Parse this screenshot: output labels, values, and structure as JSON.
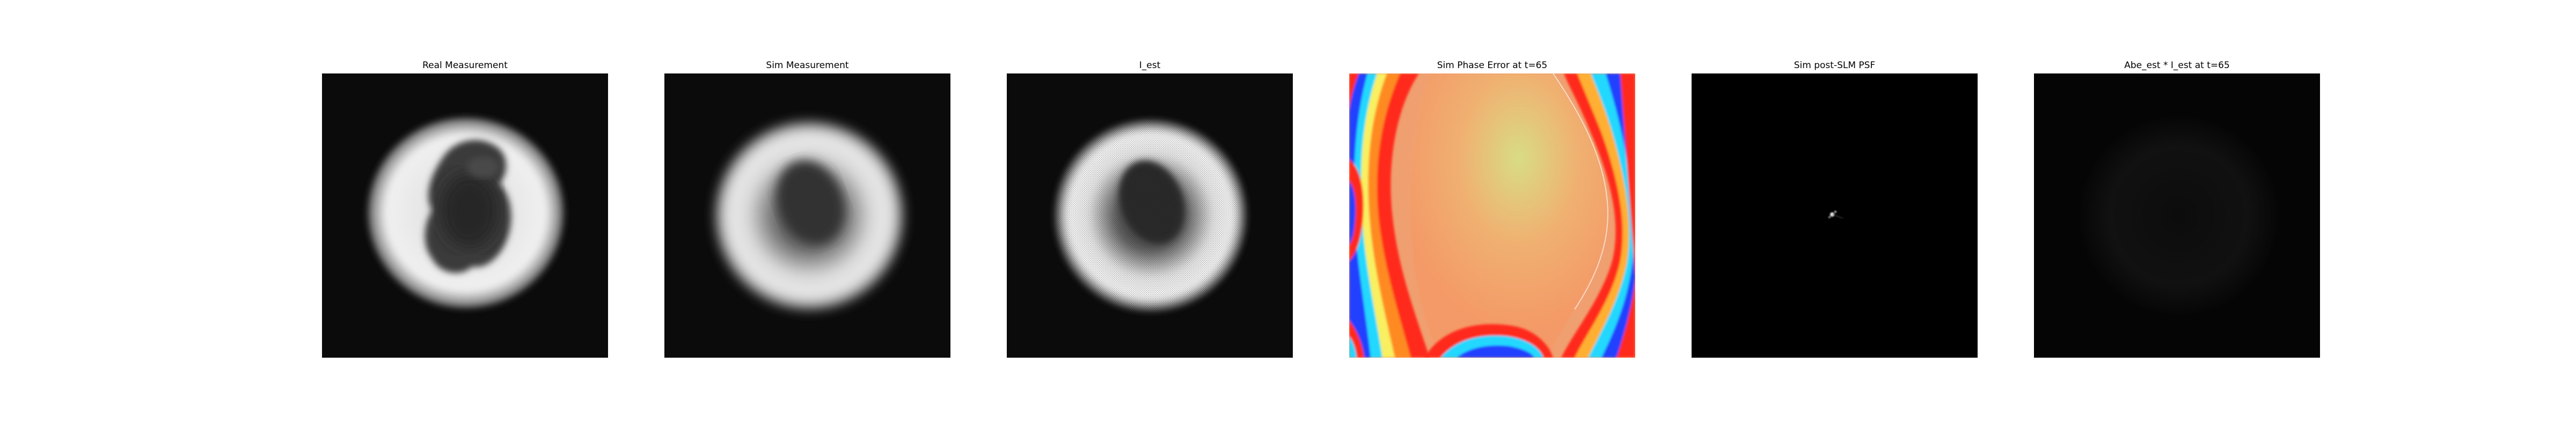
{
  "figure": {
    "panels": [
      {
        "title": "Real Measurement"
      },
      {
        "title": "Sim Measurement"
      },
      {
        "title": "I_est"
      },
      {
        "title": "Sim Phase Error at t=65"
      },
      {
        "title": "Sim post-SLM PSF"
      },
      {
        "title": "Abe_est * I_est at t=65"
      }
    ]
  },
  "colors": {
    "background": "#ffffff",
    "image_background": "#0b0b0b",
    "psf_background": "#000000",
    "bright_ring": "#f2f2f2",
    "phase_core": "#f0a070",
    "phase_yellow": "#d8dc84",
    "phase_red": "#ff2a1a",
    "phase_blue": "#2440ff",
    "phase_cyan": "#20d8ff"
  }
}
